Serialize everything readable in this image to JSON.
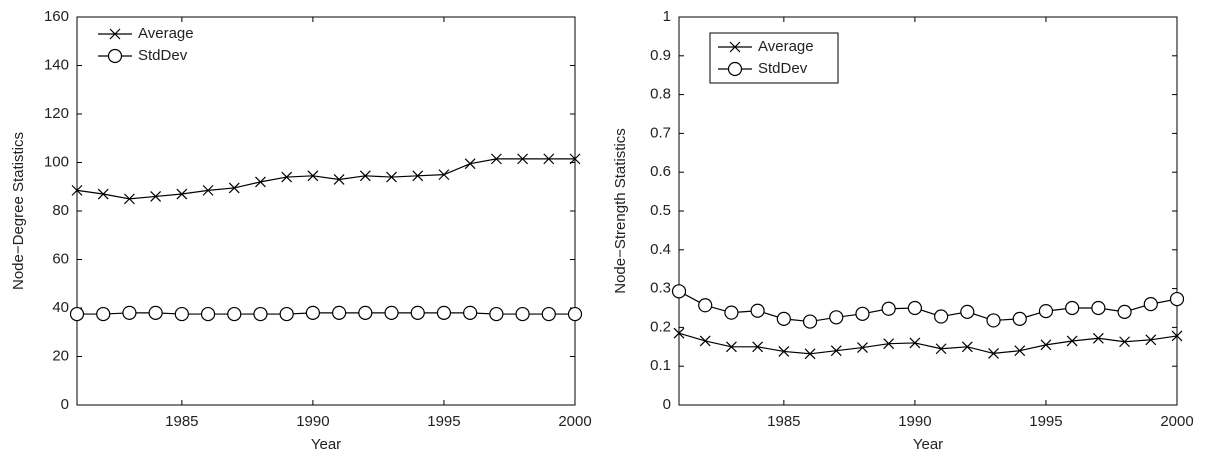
{
  "chart_data": [
    {
      "type": "line",
      "xlabel": "Year",
      "ylabel": "Node−Degree Statistics",
      "x": [
        1981,
        1982,
        1983,
        1984,
        1985,
        1986,
        1987,
        1988,
        1989,
        1990,
        1991,
        1992,
        1993,
        1994,
        1995,
        1996,
        1997,
        1998,
        1999,
        2000
      ],
      "xlim": [
        1981,
        2000
      ],
      "xticks": [
        1985,
        1990,
        1995,
        2000
      ],
      "ylim": [
        0,
        160
      ],
      "yticks": [
        0,
        20,
        40,
        60,
        80,
        100,
        120,
        140,
        160
      ],
      "legend": "upper left",
      "series": [
        {
          "name": "Average",
          "color": "#000000",
          "marker": "x",
          "values": [
            88.5,
            87,
            85,
            86,
            87,
            88.5,
            89.5,
            92,
            94,
            94.5,
            93,
            94.5,
            94,
            94.5,
            95,
            99.5,
            101.5,
            101.5,
            101.5,
            101.5
          ]
        },
        {
          "name": "StdDev",
          "color": "#000000",
          "marker": "o",
          "values": [
            37.5,
            37.5,
            38,
            38,
            37.5,
            37.5,
            37.5,
            37.5,
            37.5,
            38,
            38,
            38,
            38,
            38,
            38,
            38,
            37.5,
            37.5,
            37.5,
            37.5
          ]
        }
      ]
    },
    {
      "type": "line",
      "xlabel": "Year",
      "ylabel": "Node−Strength Statistics",
      "x": [
        1981,
        1982,
        1983,
        1984,
        1985,
        1986,
        1987,
        1988,
        1989,
        1990,
        1991,
        1992,
        1993,
        1994,
        1995,
        1996,
        1997,
        1998,
        1999,
        2000
      ],
      "xlim": [
        1981,
        2000
      ],
      "xticks": [
        1985,
        1990,
        1995,
        2000
      ],
      "ylim": [
        0,
        1
      ],
      "yticks": [
        0,
        0.1,
        0.2,
        0.3,
        0.4,
        0.5,
        0.6,
        0.7,
        0.8,
        0.9,
        1
      ],
      "legend": "upper left",
      "series": [
        {
          "name": "Average",
          "color": "#000000",
          "marker": "x",
          "values": [
            0.185,
            0.165,
            0.15,
            0.15,
            0.138,
            0.132,
            0.14,
            0.148,
            0.158,
            0.16,
            0.145,
            0.15,
            0.133,
            0.14,
            0.155,
            0.165,
            0.172,
            0.163,
            0.168,
            0.178
          ]
        },
        {
          "name": "StdDev",
          "color": "#000000",
          "marker": "o",
          "values": [
            0.293,
            0.257,
            0.238,
            0.243,
            0.222,
            0.215,
            0.226,
            0.235,
            0.248,
            0.25,
            0.228,
            0.24,
            0.218,
            0.222,
            0.242,
            0.25,
            0.25,
            0.24,
            0.26,
            0.273
          ]
        }
      ]
    }
  ]
}
